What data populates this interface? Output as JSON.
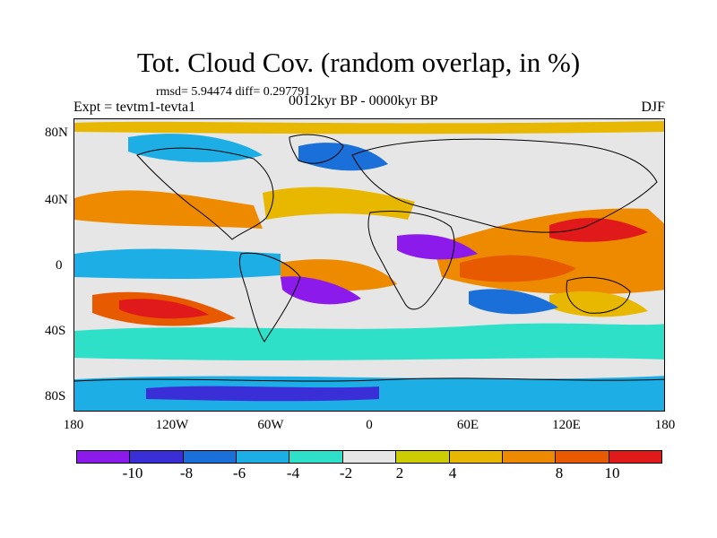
{
  "title": "Tot. Cloud Cov. (random overlap, in %)",
  "stats_line": "rmsd= 5.94474 diff= 0.297791",
  "experiment": "Expt = tevtm1-tevta1",
  "period": "0012kyr BP - 0000kyr BP",
  "season": "DJF",
  "lat_labels": [
    "80N",
    "40N",
    "0",
    "40S",
    "80S"
  ],
  "lon_labels": [
    "180",
    "120W",
    "60W",
    "0",
    "60E",
    "120E",
    "180"
  ],
  "colorbar": {
    "colors": [
      "#8c1aeb",
      "#3a2fd6",
      "#1a6fd8",
      "#1eaee6",
      "#2ee0c8",
      "#e6e6e6",
      "#cccc00",
      "#e8b800",
      "#ee8a00",
      "#e85a00",
      "#e01a1a"
    ],
    "labels": [
      "-10",
      "-8",
      "-6",
      "-4",
      "-2",
      "2",
      "4",
      "8",
      "10"
    ]
  }
}
